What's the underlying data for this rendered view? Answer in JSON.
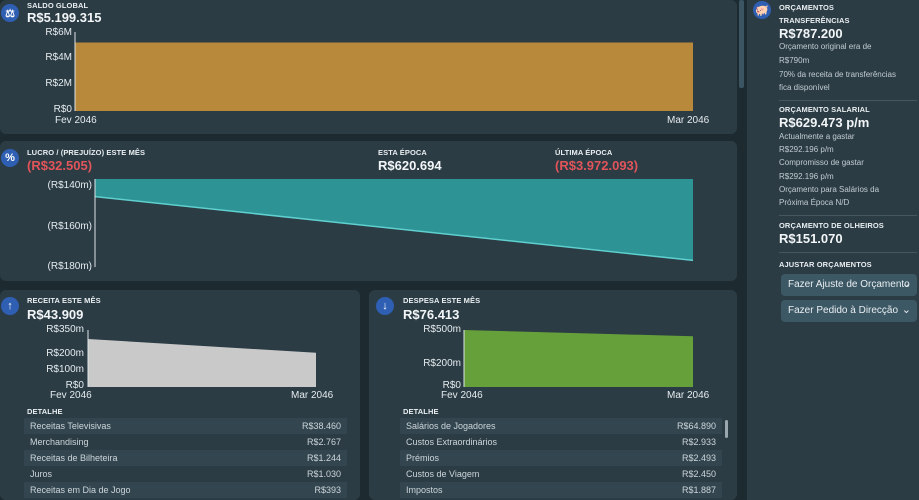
{
  "saldo": {
    "title": "SALDO GLOBAL",
    "value": "R$5.199.315",
    "y_ticks": [
      "R$6M",
      "R$4M",
      "R$2M",
      "R$0"
    ],
    "x_ticks": [
      "Fev 2046",
      "Mar 2046"
    ],
    "icon": "scale-icon"
  },
  "lucro": {
    "title": "LUCRO / (PREJUÍZO) ESTE MÊS",
    "value": "(R$32.505)",
    "season_title": "ESTA ÉPOCA",
    "season_value": "R$620.694",
    "last_title": "ÚLTIMA ÉPOCA",
    "last_value": "(R$3.972.093)",
    "y_ticks": [
      "(R$140m)",
      "(R$160m)",
      "(R$180m)"
    ],
    "icon": "percent-icon"
  },
  "receita": {
    "title": "RECEITA ESTE MÊS",
    "value": "R$43.909",
    "y_ticks": [
      "R$350m",
      "R$200m",
      "R$100m",
      "R$0"
    ],
    "x_ticks": [
      "Fev 2046",
      "Mar 2046"
    ],
    "detail_label": "DETALHE",
    "rows": [
      {
        "label": "Receitas Televisivas",
        "value": "R$38.460"
      },
      {
        "label": "Merchandising",
        "value": "R$2.767"
      },
      {
        "label": "Receitas de Bilheteira",
        "value": "R$1.244"
      },
      {
        "label": "Juros",
        "value": "R$1.030"
      },
      {
        "label": "Receitas em Dia de Jogo",
        "value": "R$393"
      }
    ],
    "icon": "arrow-up-icon"
  },
  "despesa": {
    "title": "DESPESA ESTE MÊS",
    "value": "R$76.413",
    "y_ticks": [
      "R$500m",
      "R$200m",
      "R$0"
    ],
    "x_ticks": [
      "Fev 2046",
      "Mar 2046"
    ],
    "detail_label": "DETALHE",
    "rows": [
      {
        "label": "Salários de Jogadores",
        "value": "R$64.890"
      },
      {
        "label": "Custos Extraordinários",
        "value": "R$2.933"
      },
      {
        "label": "Prémios",
        "value": "R$2.493"
      },
      {
        "label": "Custos de Viagem",
        "value": "R$2.450"
      },
      {
        "label": "Impostos",
        "value": "R$1.887"
      }
    ],
    "icon": "arrow-down-icon"
  },
  "orcamentos": {
    "title": "ORÇAMENTOS",
    "transfer_title": "TRANSFERÊNCIAS",
    "transfer_value": "R$787.200",
    "transfer_original": "Orçamento original era de",
    "transfer_original_value": "R$790m",
    "transfer_note_1": "70% da receita de transferências",
    "transfer_note_2": "fica disponível",
    "salary_title": "ORÇAMENTO SALARIAL",
    "salary_value": "R$629.473 p/m",
    "salary_spent_label": "Actualmente a gastar",
    "salary_spent_value": "R$292.196 p/m",
    "salary_commit_label": "Compromisso de gastar",
    "salary_commit_value": "R$292.196 p/m",
    "salary_next_1": "Orçamento para Salários da",
    "salary_next_2": "Próxima Época N/D",
    "scout_title": "ORÇAMENTO DE OLHEIROS",
    "scout_value": "R$151.070",
    "adjust_title": "AJUSTAR ORÇAMENTOS",
    "button_adjust": "Fazer Ajuste de Orçamento",
    "button_request": "Fazer Pedido à Direcção",
    "icon": "piggy-bank-icon"
  },
  "colors": {
    "saldo_fill": "#b8893b",
    "lucro_fill": "#2e9394",
    "receita_fill": "#c9c9c9",
    "despesa_fill": "#66a03a",
    "negative": "#e0545a",
    "accent": "#2f5fb3"
  },
  "chart_data": [
    {
      "type": "area",
      "title": "SALDO GLOBAL",
      "x": [
        "Fev 2046",
        "Mar 2046"
      ],
      "values": [
        5200000,
        5199315
      ],
      "ylim": [
        0,
        6000000
      ],
      "yticks": [
        "R$6M",
        "R$4M",
        "R$2M",
        "R$0"
      ]
    },
    {
      "type": "area",
      "title": "LUCRO / (PREJUÍZO) ESTE MÊS",
      "x": [
        "Fev 2046",
        "Mar 2046"
      ],
      "values": [
        -148000,
        -177000
      ],
      "ylim": [
        -180000,
        -140000
      ],
      "yticks": [
        "(R$140m)",
        "(R$160m)",
        "(R$180m)"
      ]
    },
    {
      "type": "area",
      "title": "RECEITA ESTE MÊS",
      "x": [
        "Fev 2046",
        "Mar 2046"
      ],
      "values": [
        295000,
        210000
      ],
      "ylim": [
        0,
        350000
      ],
      "yticks": [
        "R$350m",
        "R$200m",
        "R$100m",
        "R$0"
      ]
    },
    {
      "type": "area",
      "title": "DESPESA ESTE MÊS",
      "x": [
        "Fev 2046",
        "Mar 2046"
      ],
      "values": [
        500000,
        445000
      ],
      "ylim": [
        0,
        500000
      ],
      "yticks": [
        "R$500m",
        "R$200m",
        "R$0"
      ]
    }
  ]
}
